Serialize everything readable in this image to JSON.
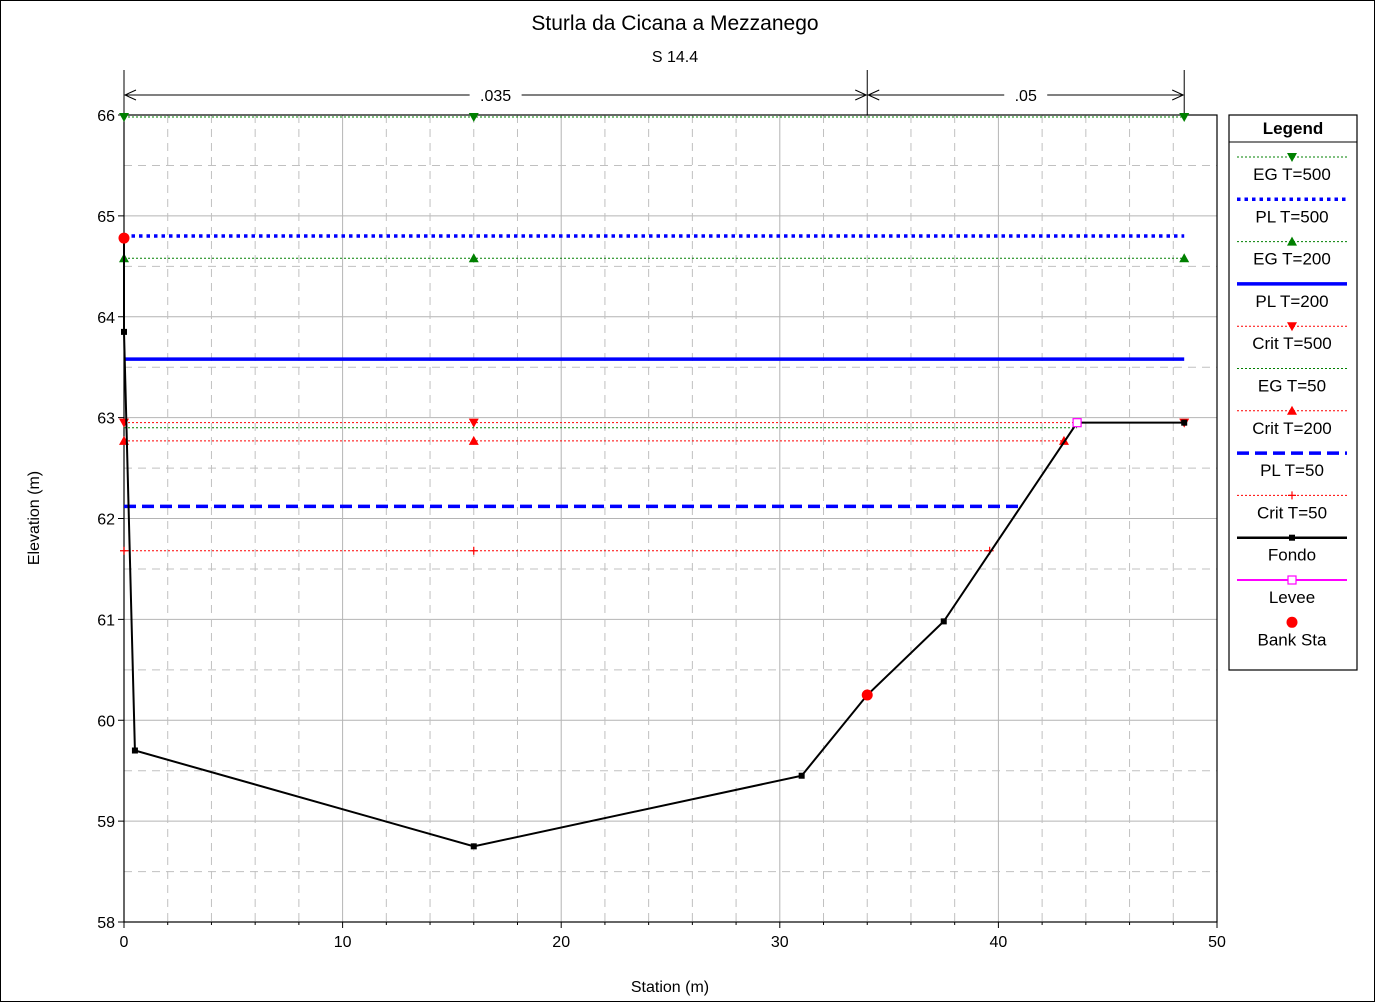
{
  "chart_data": {
    "type": "line",
    "title": "Sturla da Cicana a Mezzanego",
    "subtitle": "S 14.4",
    "xlabel": "Station (m)",
    "ylabel": "Elevation (m)",
    "xlim": [
      0,
      50
    ],
    "ylim": [
      58,
      66
    ],
    "xticks": [
      0,
      10,
      20,
      30,
      40,
      50
    ],
    "yticks": [
      58,
      59,
      60,
      61,
      62,
      63,
      64,
      65,
      66
    ],
    "grid": true,
    "legend_position": "right",
    "legend_title": "Legend",
    "roughness": [
      {
        "label": ".035",
        "x_from": 0,
        "x_to": 34
      },
      {
        "label": ".05",
        "x_from": 34,
        "x_to": 48.5
      }
    ],
    "series": [
      {
        "name": "EG T=500",
        "color": "#008000",
        "style": "dotted-thin",
        "marker": "tri-down",
        "x": [
          0,
          48.5
        ],
        "y": [
          65.98,
          65.98
        ],
        "marker_x": [
          0,
          16,
          48.5
        ]
      },
      {
        "name": "PL T=500",
        "color": "#0000ff",
        "style": "dotted-thick",
        "marker": "none",
        "x": [
          0,
          48.5
        ],
        "y": [
          64.8,
          64.8
        ]
      },
      {
        "name": "EG T=200",
        "color": "#008000",
        "style": "dotted-thin",
        "marker": "tri-up",
        "x": [
          0,
          48.5
        ],
        "y": [
          64.58,
          64.58
        ],
        "marker_x": [
          0,
          16,
          48.5
        ]
      },
      {
        "name": "PL T=200",
        "color": "#0000ff",
        "style": "solid-thick",
        "marker": "none",
        "x": [
          0,
          48.5
        ],
        "y": [
          63.58,
          63.58
        ]
      },
      {
        "name": "Crit T=500",
        "color": "#ff0000",
        "style": "dotted-thin",
        "marker": "tri-down",
        "x": [
          0,
          48.5
        ],
        "y": [
          62.95,
          62.95
        ],
        "marker_x": [
          0,
          16,
          48.5
        ]
      },
      {
        "name": "EG T=50",
        "color": "#008000",
        "style": "dotted-thin",
        "marker": "none",
        "x": [
          0,
          43.6
        ],
        "y": [
          62.9,
          62.9
        ]
      },
      {
        "name": "Crit T=200",
        "color": "#ff0000",
        "style": "dotted-thin",
        "marker": "tri-up",
        "x": [
          0,
          43
        ],
        "y": [
          62.77,
          62.77
        ],
        "marker_x": [
          0,
          16,
          43
        ]
      },
      {
        "name": "PL T=50",
        "color": "#0000ff",
        "style": "dashed-thick",
        "marker": "none",
        "x": [
          0,
          41
        ],
        "y": [
          62.12,
          62.12
        ]
      },
      {
        "name": "Crit T=50",
        "color": "#ff0000",
        "style": "dotted-thin",
        "marker": "plus",
        "x": [
          0,
          39.6
        ],
        "y": [
          61.68,
          61.68
        ],
        "marker_x": [
          0,
          16,
          39.6
        ]
      },
      {
        "name": "Fondo",
        "color": "#000000",
        "style": "solid",
        "marker": "square",
        "x": [
          0,
          0,
          0.5,
          16,
          31,
          34,
          37.5,
          43.6,
          48.5
        ],
        "y": [
          64.78,
          63.85,
          59.7,
          58.75,
          59.45,
          60.25,
          60.98,
          62.95,
          62.95
        ]
      },
      {
        "name": "Levee",
        "color": "#ff00ff",
        "style": "solid",
        "marker": "open-square",
        "x": [
          43.6
        ],
        "y": [
          62.95
        ]
      },
      {
        "name": "Bank Sta",
        "color": "#ff0000",
        "style": "none",
        "marker": "circle",
        "x": [
          0,
          34
        ],
        "y": [
          64.78,
          60.25
        ]
      }
    ]
  }
}
